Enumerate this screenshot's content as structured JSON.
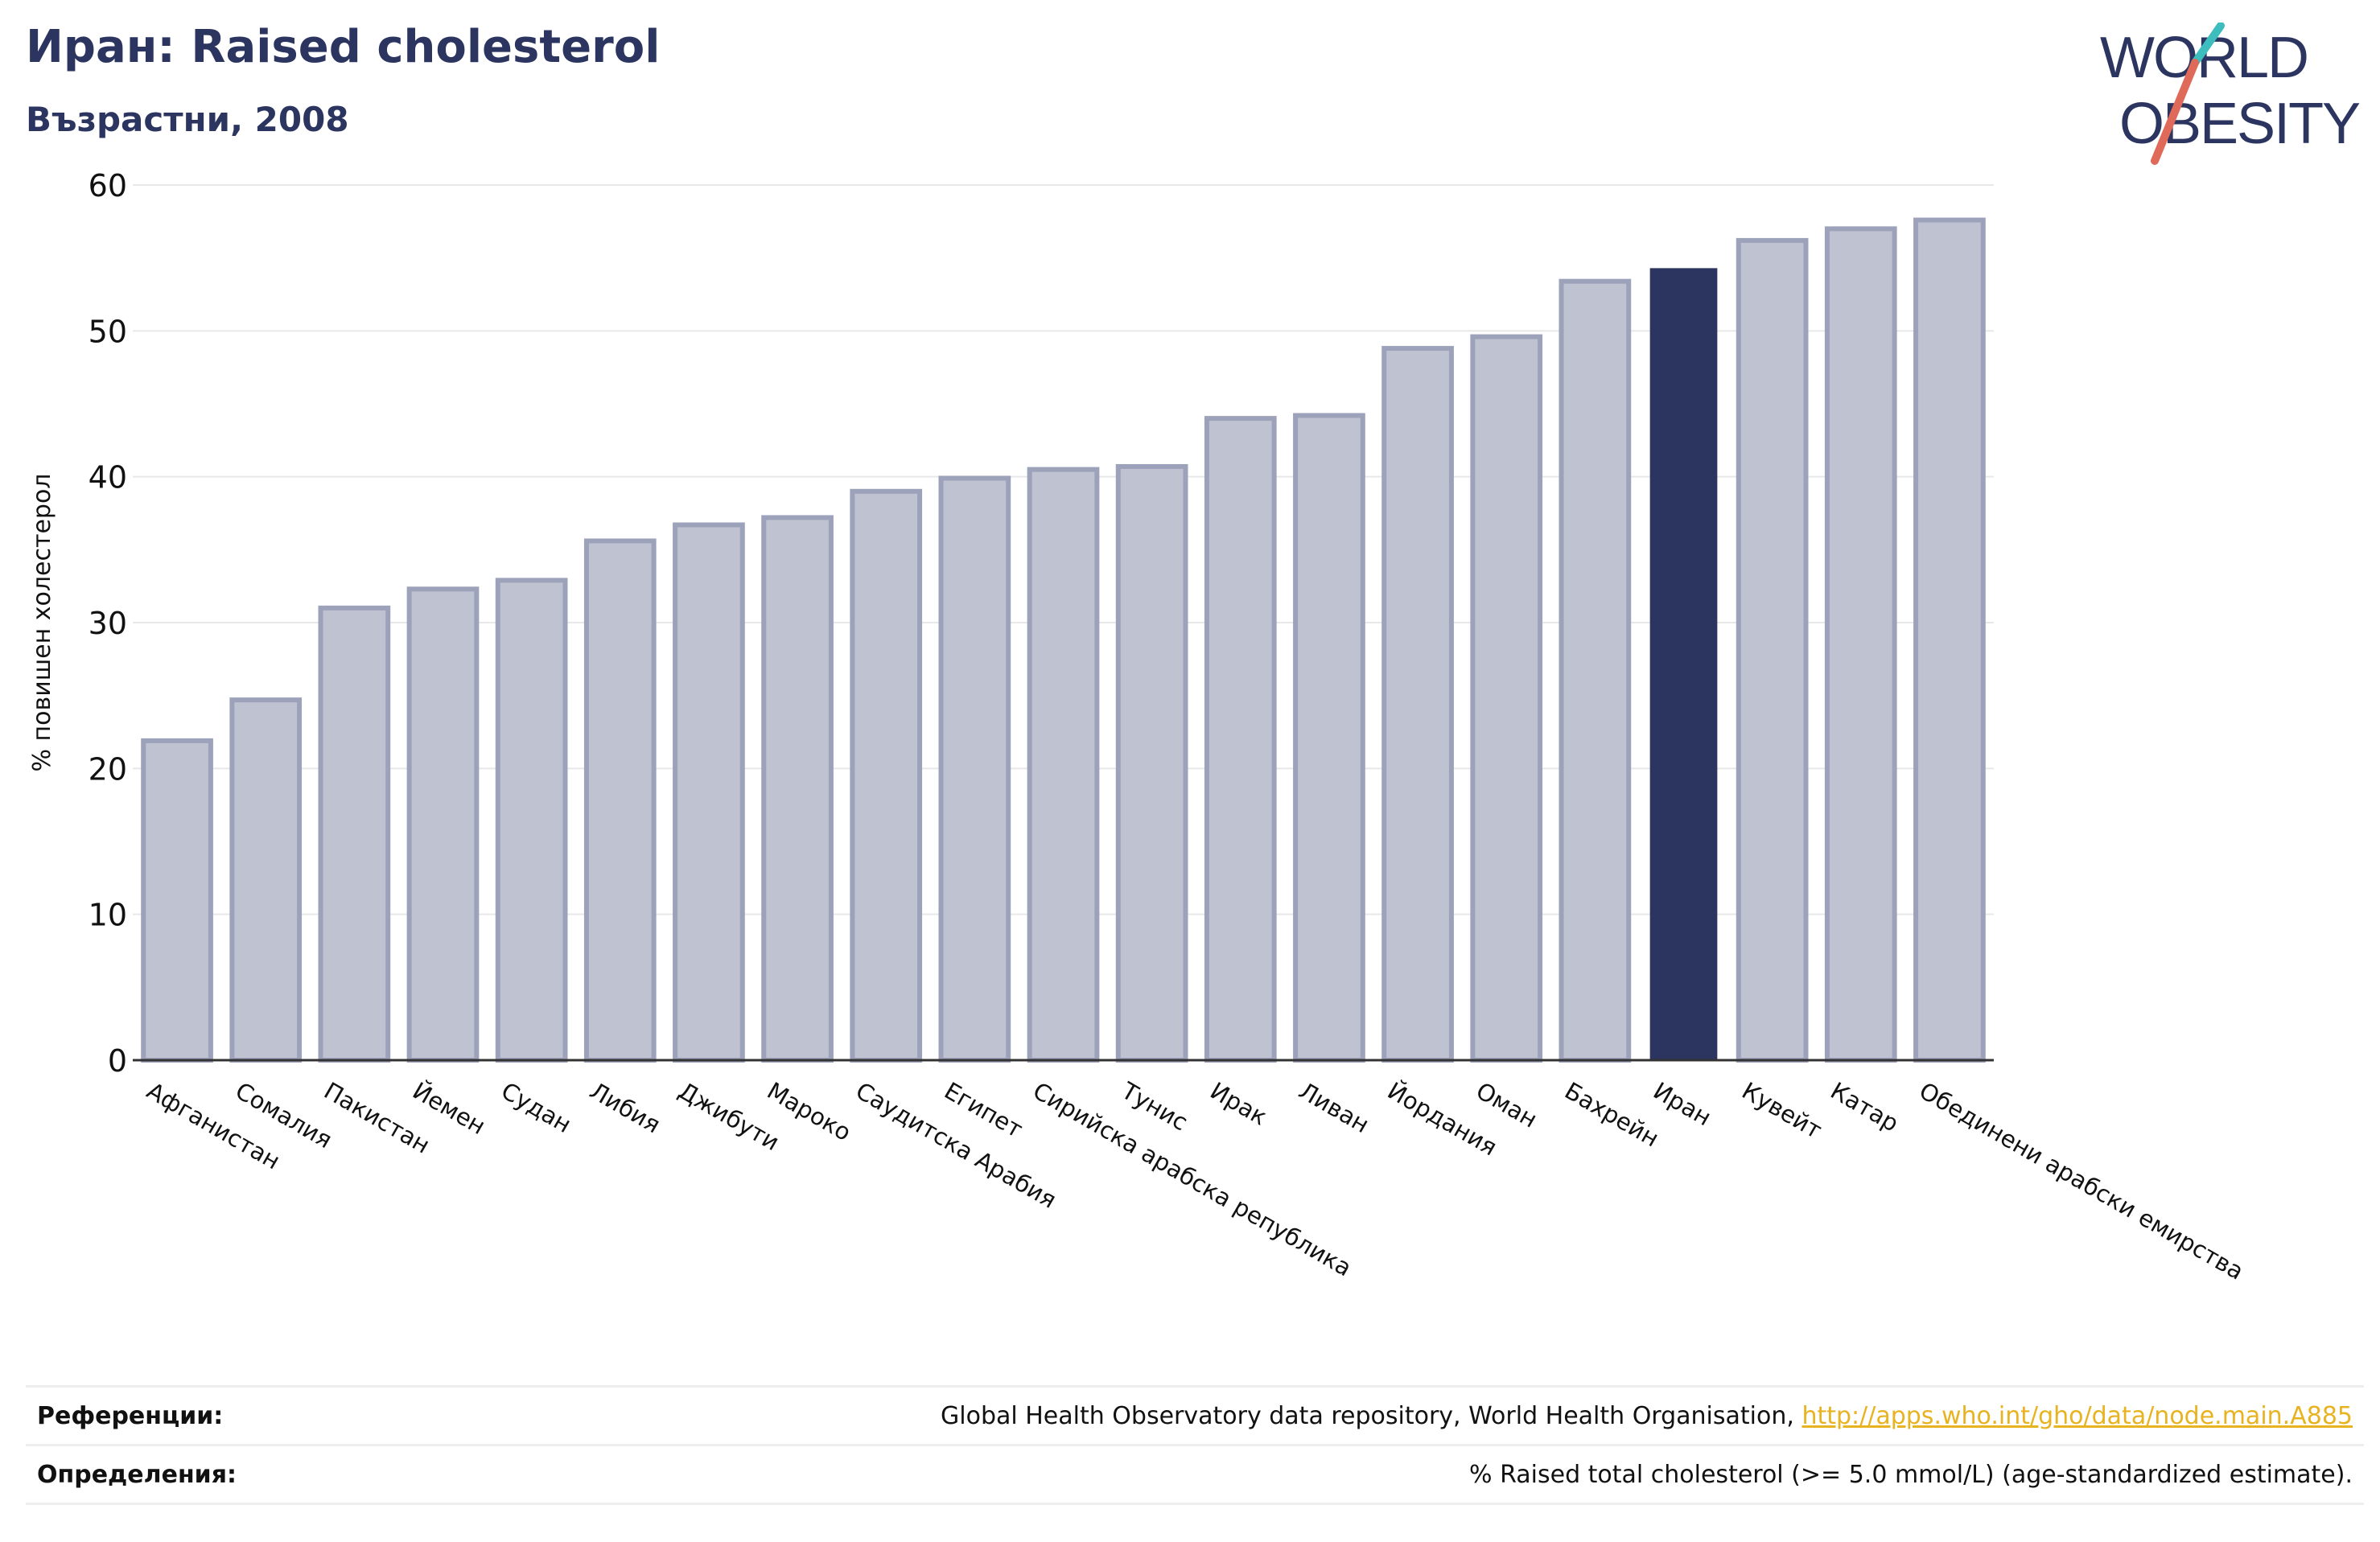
{
  "header": {
    "title": "Иран: Raised cholesterol",
    "subtitle": "Възрастни, 2008"
  },
  "logo": {
    "line1": "WORLD",
    "line2": "OBESITY",
    "colors": {
      "text": "#2b3560",
      "slash_teal": "#3dbdbd",
      "slash_coral": "#e06a5a"
    }
  },
  "colors": {
    "bar": "#bfc2d0",
    "bar_edge": "#9da2bb",
    "highlight": "#2b3560",
    "grid": "#e8e8e8",
    "axis": "#333333"
  },
  "chart_data": {
    "type": "bar",
    "ylabel": "% повишен холестерол",
    "ylim": [
      0,
      60
    ],
    "yticks": [
      0,
      10,
      20,
      30,
      40,
      50,
      60
    ],
    "grid": true,
    "highlight_category": "Иран",
    "categories": [
      "Афганистан",
      "Сомалия",
      "Пакистан",
      "Йемен",
      "Судан",
      "Либия",
      "Джибути",
      "Мароко",
      "Саудитска Арабия",
      "Египет",
      "Сирийска арабска република",
      "Тунис",
      "Ирак",
      "Ливан",
      "Йордания",
      "Оман",
      "Бахрейн",
      "Иран",
      "Кувейт",
      "Катар",
      "Обединени арабски емирства"
    ],
    "values": [
      21.9,
      24.7,
      31.0,
      32.3,
      32.9,
      35.6,
      36.7,
      37.2,
      39.0,
      39.9,
      40.5,
      40.7,
      44.0,
      44.2,
      48.8,
      49.6,
      53.4,
      54.3,
      56.2,
      57.0,
      57.6
    ]
  },
  "references": {
    "refs_label": "Референции:",
    "refs_text": "Global Health Observatory data repository, World Health Organisation, ",
    "refs_link": "http://apps.who.int/gho/data/node.main.A885",
    "defs_label": "Определения:",
    "defs_text": "% Raised total cholesterol (>= 5.0 mmol/L) (age-standardized estimate)."
  }
}
